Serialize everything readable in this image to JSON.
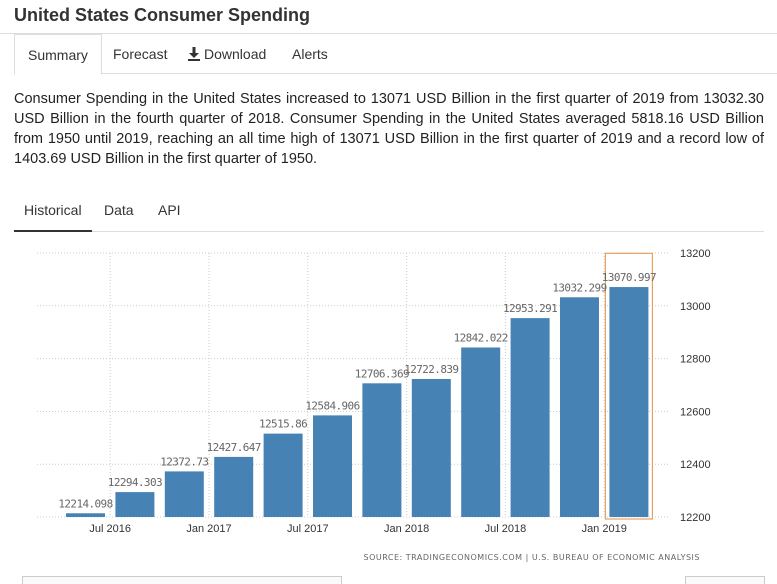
{
  "page": {
    "title": "United States Consumer Spending"
  },
  "tabs": [
    {
      "label": "Summary",
      "active": true
    },
    {
      "label": "Forecast",
      "active": false
    },
    {
      "label": "Download",
      "active": false,
      "icon": "download-icon"
    },
    {
      "label": "Alerts",
      "active": false
    }
  ],
  "description": "Consumer Spending in the United States increased to 13071 USD Billion in the first quarter of 2019 from 13032.30 USD Billion in the fourth quarter of 2018. Consumer Spending in the United States averaged 5818.16 USD Billion from 1950 until 2019, reaching an all time high of 13071 USD Billion in the first quarter of 2019 and a record low of 1403.69 USD Billion in the first quarter of 1950.",
  "subtabs": [
    {
      "label": "Historical",
      "active": true
    },
    {
      "label": "Data",
      "active": false
    },
    {
      "label": "API",
      "active": false
    }
  ],
  "colors": {
    "bar": "#4682b4",
    "highlight": "#e8a15e",
    "grid": "#cccccc",
    "label": "#666666"
  },
  "chart_data": {
    "type": "bar",
    "title": "",
    "xlabel": "",
    "ylabel": "",
    "ylim": [
      12200,
      13200
    ],
    "yticks": [
      "12200",
      "12400",
      "12600",
      "12800",
      "13000",
      "13200"
    ],
    "categories": [
      "Q2 2016",
      "Q3 2016",
      "Q4 2016",
      "Q1 2017",
      "Q2 2017",
      "Q3 2017",
      "Q4 2017",
      "Q1 2018",
      "Q2 2018",
      "Q3 2018",
      "Q4 2018",
      "Q1 2019"
    ],
    "values": [
      12214.098,
      12294.303,
      12372.73,
      12427.647,
      12515.86,
      12584.906,
      12706.369,
      12722.839,
      12842.022,
      12953.291,
      13032.299,
      13070.997
    ],
    "value_labels": [
      "12214.098",
      "12294.303",
      "12372.73",
      "12427.647",
      "12515.86",
      "12584.906",
      "12706.369",
      "12722.839",
      "12842.022",
      "12953.291",
      "13032.299",
      "13070.997"
    ],
    "x_tick_labels": [
      {
        "label": "Jul 2016",
        "index": 1
      },
      {
        "label": "Jan 2017",
        "index": 3
      },
      {
        "label": "Jul 2017",
        "index": 5
      },
      {
        "label": "Jan 2018",
        "index": 7
      },
      {
        "label": "Jul 2018",
        "index": 9
      },
      {
        "label": "Jan 2019",
        "index": 11
      }
    ],
    "highlighted_index": 11,
    "grid": true,
    "source": "SOURCE: TRADINGECONOMICS.COM | U.S. BUREAU OF ECONOMIC ANALYSIS"
  }
}
